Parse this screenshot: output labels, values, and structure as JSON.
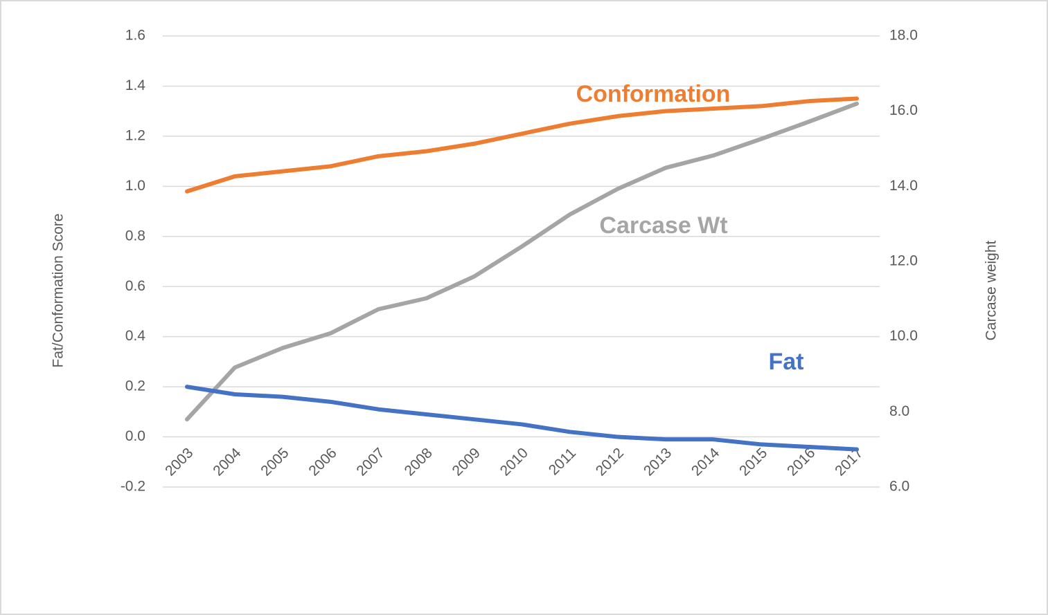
{
  "chart_data": {
    "type": "line",
    "categories": [
      "2003",
      "2004",
      "2005",
      "2006",
      "2007",
      "2008",
      "2009",
      "2010",
      "2011",
      "2012",
      "2013",
      "2014",
      "2015",
      "2016",
      "2017"
    ],
    "series": [
      {
        "name": "Conformation",
        "color": "#ED7D31",
        "values": [
          0.98,
          1.04,
          1.06,
          1.08,
          1.12,
          1.14,
          1.17,
          1.21,
          1.25,
          1.28,
          1.3,
          1.31,
          1.32,
          1.34,
          1.35
        ]
      },
      {
        "name": "Carcase Wt",
        "color": "#A5A5A5",
        "axis": "y2",
        "values": [
          7.8,
          9.18,
          9.7,
          10.09,
          10.73,
          11.02,
          11.6,
          12.4,
          13.25,
          13.93,
          14.49,
          14.82,
          15.26,
          15.72,
          16.2
        ]
      },
      {
        "name": "Fat",
        "color": "#4472C4",
        "values": [
          0.2,
          0.17,
          0.16,
          0.14,
          0.11,
          0.09,
          0.07,
          0.05,
          0.02,
          0.0,
          -0.01,
          -0.01,
          -0.03,
          -0.04,
          -0.05
        ]
      }
    ],
    "y_label": "Fat/Conformation Score",
    "y2_label": "Carcase weight",
    "ylim": [
      -0.2,
      1.6
    ],
    "yticks": [
      -0.2,
      {
        "value": 0,
        "label": "0.0"
      },
      0.2,
      0.4,
      0.6,
      0.8,
      {
        "value": 1,
        "label": "1.0"
      },
      1.2,
      1.4,
      1.6
    ],
    "y2lim": [
      6,
      18
    ],
    "y2ticks": [
      {
        "value": 6,
        "label": "6.0"
      },
      {
        "value": 8,
        "label": "8.0"
      },
      {
        "value": 10,
        "label": "10.0"
      },
      {
        "value": 12,
        "label": "12.0"
      },
      {
        "value": 14,
        "label": "14.0"
      },
      {
        "value": 16,
        "label": "16.0"
      },
      {
        "value": 18,
        "label": "18.0"
      }
    ],
    "grid": true
  }
}
